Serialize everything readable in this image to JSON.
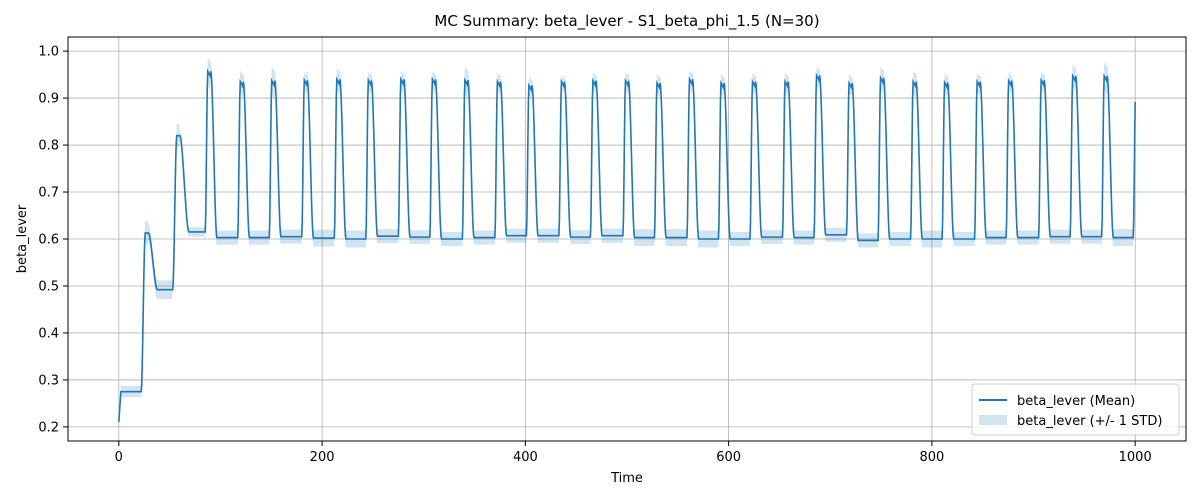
{
  "chart_data": {
    "type": "line",
    "title": "MC Summary: beta_lever - S1_beta_phi_1.5 (N=30)",
    "xlabel": "Time",
    "ylabel": "beta_lever",
    "xlim": [
      -50,
      1050
    ],
    "ylim": [
      0.17,
      1.03
    ],
    "xticks": [
      0,
      200,
      400,
      600,
      800,
      1000
    ],
    "xtick_labels": [
      "0",
      "200",
      "400",
      "600",
      "800",
      "1000"
    ],
    "yticks": [
      0.2,
      0.3,
      0.4,
      0.5,
      0.6,
      0.7,
      0.8,
      0.9,
      1.0
    ],
    "ytick_labels": [
      "0.2",
      "0.3",
      "0.4",
      "0.5",
      "0.6",
      "0.7",
      "0.8",
      "0.9",
      "1.0"
    ],
    "grid": true,
    "legend_position": "lower-right",
    "series": [
      {
        "name": "beta_lever (Mean)",
        "kind": "line",
        "color": "#1f77b4"
      },
      {
        "name": "beta_lever (+/- 1 STD)",
        "kind": "band",
        "color": "#1f77b4",
        "alpha": 0.2
      }
    ],
    "segments": [
      {
        "t0": 0,
        "t1": 2,
        "base": 0.275,
        "peak": 0.275,
        "std": 0.01,
        "peak_std": 0.01,
        "initial": 0.21
      },
      {
        "t0": 2,
        "t1": 22,
        "base": 0.275,
        "peak": 0.275,
        "std": 0.012,
        "peak_std": 0.012
      },
      {
        "t0": 22,
        "t1": 53,
        "base": 0.492,
        "peak": 0.613,
        "std": 0.02,
        "peak_std": 0.025
      },
      {
        "t0": 53,
        "t1": 85,
        "base": 0.615,
        "peak": 0.82,
        "std": 0.01,
        "peak_std": 0.025
      }
    ],
    "cycles": [
      {
        "t": 85,
        "peak": 0.957,
        "base": 0.603,
        "peak_std": 0.03,
        "base_std": 0.015
      },
      {
        "t": 117,
        "peak": 0.935,
        "base": 0.603,
        "peak_std": 0.025,
        "base_std": 0.015
      },
      {
        "t": 148,
        "peak": 0.937,
        "base": 0.605,
        "peak_std": 0.03,
        "base_std": 0.015
      },
      {
        "t": 180,
        "peak": 0.938,
        "base": 0.602,
        "peak_std": 0.02,
        "base_std": 0.018
      },
      {
        "t": 212,
        "peak": 0.94,
        "base": 0.6,
        "peak_std": 0.025,
        "base_std": 0.018
      },
      {
        "t": 243,
        "peak": 0.938,
        "base": 0.606,
        "peak_std": 0.02,
        "base_std": 0.015
      },
      {
        "t": 275,
        "peak": 0.94,
        "base": 0.604,
        "peak_std": 0.02,
        "base_std": 0.015
      },
      {
        "t": 306,
        "peak": 0.94,
        "base": 0.6,
        "peak_std": 0.02,
        "base_std": 0.015
      },
      {
        "t": 338,
        "peak": 0.938,
        "base": 0.603,
        "peak_std": 0.03,
        "base_std": 0.015
      },
      {
        "t": 370,
        "peak": 0.935,
        "base": 0.607,
        "peak_std": 0.02,
        "base_std": 0.015
      },
      {
        "t": 401,
        "peak": 0.927,
        "base": 0.607,
        "peak_std": 0.02,
        "base_std": 0.015
      },
      {
        "t": 433,
        "peak": 0.935,
        "base": 0.604,
        "peak_std": 0.015,
        "base_std": 0.015
      },
      {
        "t": 464,
        "peak": 0.937,
        "base": 0.607,
        "peak_std": 0.02,
        "base_std": 0.015
      },
      {
        "t": 496,
        "peak": 0.937,
        "base": 0.603,
        "peak_std": 0.02,
        "base_std": 0.018
      },
      {
        "t": 527,
        "peak": 0.932,
        "base": 0.603,
        "peak_std": 0.02,
        "base_std": 0.018
      },
      {
        "t": 559,
        "peak": 0.94,
        "base": 0.6,
        "peak_std": 0.02,
        "base_std": 0.018
      },
      {
        "t": 590,
        "peak": 0.932,
        "base": 0.6,
        "peak_std": 0.02,
        "base_std": 0.015
      },
      {
        "t": 621,
        "peak": 0.935,
        "base": 0.604,
        "peak_std": 0.02,
        "base_std": 0.015
      },
      {
        "t": 653,
        "peak": 0.935,
        "base": 0.603,
        "peak_std": 0.02,
        "base_std": 0.015
      },
      {
        "t": 684,
        "peak": 0.948,
        "base": 0.609,
        "peak_std": 0.02,
        "base_std": 0.015
      },
      {
        "t": 716,
        "peak": 0.932,
        "base": 0.597,
        "peak_std": 0.02,
        "base_std": 0.015
      },
      {
        "t": 747,
        "peak": 0.943,
        "base": 0.6,
        "peak_std": 0.025,
        "base_std": 0.015
      },
      {
        "t": 779,
        "peak": 0.935,
        "base": 0.6,
        "peak_std": 0.025,
        "base_std": 0.018
      },
      {
        "t": 810,
        "peak": 0.933,
        "base": 0.6,
        "peak_std": 0.02,
        "base_std": 0.015
      },
      {
        "t": 842,
        "peak": 0.935,
        "base": 0.603,
        "peak_std": 0.02,
        "base_std": 0.015
      },
      {
        "t": 873,
        "peak": 0.937,
        "base": 0.603,
        "peak_std": 0.02,
        "base_std": 0.015
      },
      {
        "t": 905,
        "peak": 0.938,
        "base": 0.605,
        "peak_std": 0.02,
        "base_std": 0.015
      },
      {
        "t": 936,
        "peak": 0.947,
        "base": 0.605,
        "peak_std": 0.025,
        "base_std": 0.015
      },
      {
        "t": 967,
        "peak": 0.947,
        "base": 0.603,
        "peak_std": 0.03,
        "base_std": 0.018
      },
      {
        "t": 998,
        "peak": 0.925,
        "base": 0.925,
        "peak_std": 0.025,
        "base_std": 0.025
      }
    ],
    "t_end": 1000
  }
}
